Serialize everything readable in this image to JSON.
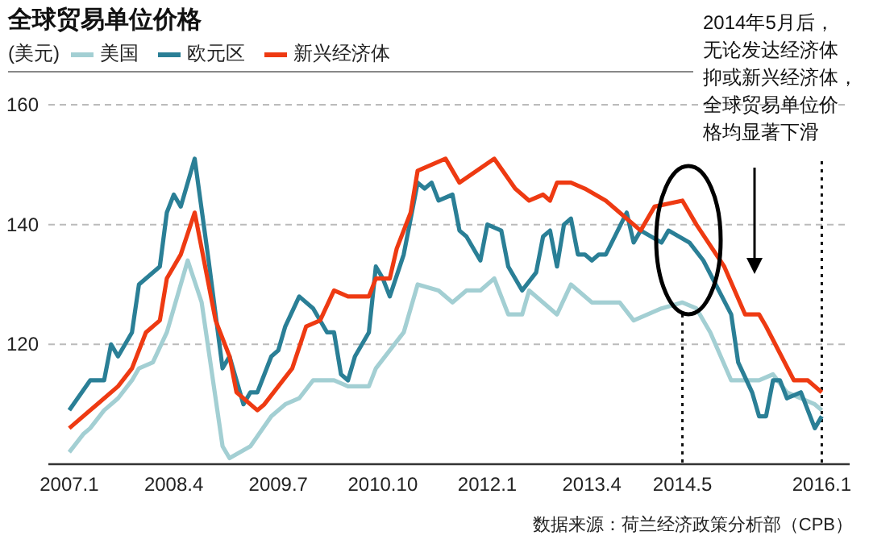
{
  "chart_data": {
    "type": "line",
    "title": "全球贸易单位价格",
    "ylabel": "(美元)",
    "annotations": [
      "2014年5月后，无论发达经济体抑或新兴经济体，全球贸易单位价格均显著下滑",
      "数据来源：荷兰经济政策分析部（CPB）"
    ],
    "series": [
      {
        "name": "美国",
        "color": "#a3cfd3",
        "x": [
          "2007-01",
          "2007-03",
          "2007-04",
          "2007-06",
          "2007-08",
          "2007-10",
          "2007-11",
          "2008-01",
          "2008-03",
          "2008-06",
          "2008-08",
          "2008-11",
          "2008-12",
          "2009-03",
          "2009-06",
          "2009-08",
          "2009-10",
          "2009-12",
          "2010-03",
          "2010-05",
          "2010-08",
          "2010-09",
          "2011-01",
          "2011-03",
          "2011-06",
          "2011-08",
          "2011-10",
          "2011-12",
          "2012-02",
          "2012-04",
          "2012-06",
          "2012-07",
          "2012-11",
          "2013-01",
          "2013-04",
          "2013-08",
          "2013-10",
          "2014-02",
          "2014-05",
          "2014-07",
          "2014-09",
          "2014-12",
          "2015-04",
          "2015-06",
          "2015-08",
          "2015-12",
          "2016-01"
        ],
        "values": [
          102,
          105,
          106,
          109,
          111,
          114,
          116,
          117,
          122,
          134,
          127,
          103,
          101,
          103,
          108,
          110,
          111,
          114,
          114,
          113,
          113,
          116,
          122,
          130,
          129,
          127,
          129,
          129,
          131,
          125,
          125,
          129,
          125,
          130,
          127,
          127,
          124,
          126,
          127,
          126,
          122,
          114,
          114,
          115,
          112,
          110,
          109
        ]
      },
      {
        "name": "欧元区",
        "color": "#2a7f96",
        "x": [
          "2007-01",
          "2007-04",
          "2007-06",
          "2007-07",
          "2007-08",
          "2007-10",
          "2007-11",
          "2008-02",
          "2008-03",
          "2008-04",
          "2008-05",
          "2008-07",
          "2008-09",
          "2008-11",
          "2008-12",
          "2009-02",
          "2009-03",
          "2009-04",
          "2009-06",
          "2009-07",
          "2009-08",
          "2009-10",
          "2009-12",
          "2010-02",
          "2010-03",
          "2010-04",
          "2010-05",
          "2010-06",
          "2010-08",
          "2010-09",
          "2010-10",
          "2010-11",
          "2011-01",
          "2011-03",
          "2011-04",
          "2011-05",
          "2011-06",
          "2011-08",
          "2011-09",
          "2011-10",
          "2011-12",
          "2012-01",
          "2012-03",
          "2012-04",
          "2012-06",
          "2012-08",
          "2012-09",
          "2012-10",
          "2012-11",
          "2012-12",
          "2013-01",
          "2013-02",
          "2013-03",
          "2013-04",
          "2013-05",
          "2013-06",
          "2013-09",
          "2013-10",
          "2013-11",
          "2014-02",
          "2014-03",
          "2014-06",
          "2014-08",
          "2014-12",
          "2015-01",
          "2015-03",
          "2015-04",
          "2015-05",
          "2015-06",
          "2015-07",
          "2015-08",
          "2015-10",
          "2015-12",
          "2016-01"
        ],
        "values": [
          109,
          114,
          114,
          120,
          118,
          122,
          130,
          133,
          142,
          145,
          143,
          151,
          134,
          116,
          118,
          110,
          112,
          112,
          118,
          119,
          123,
          128,
          126,
          122,
          122,
          115,
          114,
          118,
          122,
          133,
          131,
          128,
          135,
          147,
          146,
          147,
          144,
          145,
          139,
          138,
          134,
          140,
          139,
          133,
          129,
          132,
          138,
          139,
          133,
          140,
          141,
          135,
          135,
          134,
          135,
          135,
          142,
          137,
          139,
          137,
          139,
          137,
          134,
          125,
          117,
          112,
          108,
          108,
          114,
          114,
          111,
          112,
          106,
          108
        ]
      },
      {
        "name": "新兴经济体",
        "color": "#ee3a12",
        "x": [
          "2007-01",
          "2007-05",
          "2007-08",
          "2007-10",
          "2007-12",
          "2008-02",
          "2008-03",
          "2008-05",
          "2008-07",
          "2008-10",
          "2008-12",
          "2009-01",
          "2009-04",
          "2009-05",
          "2009-07",
          "2009-09",
          "2009-11",
          "2010-01",
          "2010-03",
          "2010-05",
          "2010-08",
          "2010-09",
          "2010-11",
          "2010-12",
          "2011-02",
          "2011-03",
          "2011-07",
          "2011-09",
          "2012-02",
          "2012-05",
          "2012-07",
          "2012-09",
          "2012-10",
          "2012-11",
          "2013-01",
          "2013-03",
          "2013-06",
          "2013-11",
          "2014-01",
          "2014-05",
          "2014-07",
          "2014-11",
          "2015-02",
          "2015-04",
          "2015-05",
          "2015-09",
          "2015-11",
          "2016-01"
        ],
        "values": [
          106,
          110,
          113,
          116,
          122,
          124,
          131,
          135,
          142,
          124,
          118,
          112,
          109,
          110,
          113,
          116,
          123,
          124,
          129,
          128,
          128,
          131,
          131,
          136,
          142,
          149,
          151,
          147,
          151,
          146,
          144,
          145,
          144,
          147,
          147,
          146,
          144,
          139,
          143,
          144,
          140,
          133,
          125,
          125,
          123,
          114,
          114,
          112
        ]
      }
    ],
    "xlim": [
      "2006-10",
      "2016-05"
    ],
    "xticks": [
      {
        "value": "2007-01",
        "label": "2007.1"
      },
      {
        "value": "2008-04",
        "label": "2008.4"
      },
      {
        "value": "2009-07",
        "label": "2009.7"
      },
      {
        "value": "2010-10",
        "label": "2010.10"
      },
      {
        "value": "2012-01",
        "label": "2012.1"
      },
      {
        "value": "2013-04",
        "label": "2013.4"
      },
      {
        "value": "2014-05",
        "label": "2014.5"
      },
      {
        "value": "2016-01",
        "label": "2016.1"
      }
    ],
    "ylim": [
      100,
      160
    ],
    "yticks": [
      120,
      140,
      160
    ],
    "ref_lines": [
      {
        "axis": "x",
        "value": "2014-05",
        "color": "#111111",
        "line_style": "dotted"
      },
      {
        "axis": "x",
        "value": "2016-01",
        "color": "#111111",
        "line_style": "dotted"
      }
    ],
    "grid": "y",
    "legend": "top left",
    "marker": "none",
    "line_style": "solid"
  }
}
